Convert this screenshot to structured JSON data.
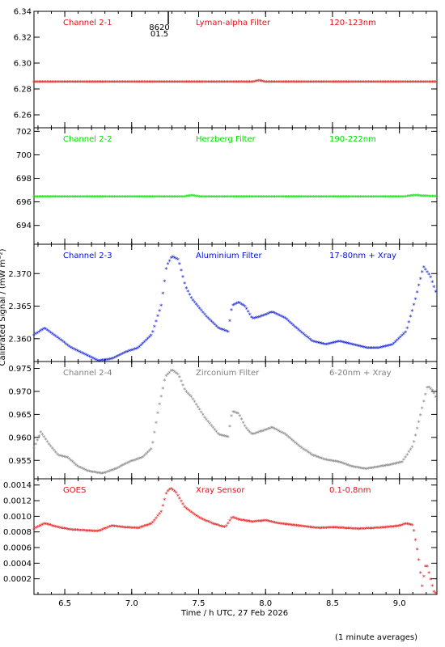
{
  "figure": {
    "xlabel": "Time / h UTC, 27 Feb 2026",
    "ylabel": "Calibrated Signal / (mW m⁻²)",
    "footnote": "(1 minute averages)",
    "annotation": {
      "top": "8620",
      "bottom": "01.5"
    }
  },
  "colors": {
    "red": "#dd1111",
    "green": "#00dd00",
    "blue": "#0011cc",
    "gray": "#808080",
    "axis": "#000000"
  },
  "x_axis": {
    "range": [
      6.27,
      9.28
    ],
    "ticks": [
      "6.5",
      "7.0",
      "7.5",
      "8.0",
      "8.5",
      "9.0"
    ]
  },
  "chart_data": [
    {
      "type": "scatter",
      "labels": [
        "Channel 2-1",
        "Lyman-alpha Filter",
        "120-123nm"
      ],
      "color": "red",
      "ylim": [
        6.25,
        6.34
      ],
      "ytick_labels": [
        "6.26",
        "6.28",
        "6.30",
        "6.32",
        "6.34"
      ],
      "x": [
        6.27,
        7.0,
        7.9,
        7.95,
        8.0,
        9.28
      ],
      "y": [
        6.285,
        6.285,
        6.285,
        6.286,
        6.285,
        6.285
      ]
    },
    {
      "type": "scatter",
      "labels": [
        "Channel 2-2",
        "Herzberg Filter",
        "190-222nm"
      ],
      "color": "green",
      "ylim": [
        692.4,
        702.3
      ],
      "ytick_labels": [
        "694",
        "696",
        "698",
        "700",
        "702"
      ],
      "x": [
        6.27,
        7.4,
        7.45,
        7.5,
        9.05,
        9.1,
        9.28
      ],
      "y": [
        696.4,
        696.4,
        696.5,
        696.4,
        696.4,
        696.5,
        696.4
      ]
    },
    {
      "type": "scatter",
      "labels": [
        "Channel 2-3",
        "Aluminium Filter",
        "17-80nm + Xray"
      ],
      "color": "blue",
      "ylim": [
        2.3565,
        2.3745
      ],
      "ytick_labels": [
        "2.360",
        "2.365",
        "2.370"
      ],
      "x": [
        6.27,
        6.35,
        6.45,
        6.55,
        6.65,
        6.75,
        6.85,
        6.95,
        7.05,
        7.15,
        7.22,
        7.26,
        7.3,
        7.35,
        7.4,
        7.45,
        7.55,
        7.65,
        7.72,
        7.75,
        7.8,
        7.85,
        7.9,
        7.95,
        8.05,
        8.15,
        8.25,
        8.35,
        8.45,
        8.55,
        8.65,
        8.75,
        8.85,
        8.95,
        9.05,
        9.12,
        9.18,
        9.23,
        9.28
      ],
      "y": [
        2.3605,
        2.3615,
        2.36,
        2.3585,
        2.3575,
        2.3565,
        2.3568,
        2.3578,
        2.3585,
        2.3605,
        2.365,
        2.371,
        2.3725,
        2.372,
        2.368,
        2.366,
        2.3635,
        2.3615,
        2.361,
        2.365,
        2.3655,
        2.3648,
        2.363,
        2.3632,
        2.364,
        2.363,
        2.3612,
        2.3595,
        2.359,
        2.3595,
        2.359,
        2.3585,
        2.3585,
        2.359,
        2.361,
        2.366,
        2.371,
        2.3695,
        2.3665
      ]
    },
    {
      "type": "scatter",
      "labels": [
        "Channel 2-4",
        "Zirconium Filter",
        "6-20nm + Xray"
      ],
      "color": "gray",
      "ylim": [
        0.951,
        0.9765
      ],
      "ytick_labels": [
        "0.955",
        "0.960",
        "0.965",
        "0.970",
        "0.975"
      ],
      "x": [
        6.27,
        6.32,
        6.38,
        6.45,
        6.52,
        6.6,
        6.68,
        6.78,
        6.88,
        6.98,
        7.08,
        7.15,
        7.2,
        7.25,
        7.3,
        7.35,
        7.4,
        7.45,
        7.55,
        7.65,
        7.72,
        7.75,
        7.8,
        7.85,
        7.9,
        7.95,
        8.05,
        8.15,
        8.25,
        8.35,
        8.45,
        8.55,
        8.65,
        8.75,
        8.85,
        8.95,
        9.02,
        9.1,
        9.16,
        9.21,
        9.25,
        9.28
      ],
      "y": [
        0.9575,
        0.961,
        0.9585,
        0.956,
        0.9555,
        0.9535,
        0.9525,
        0.952,
        0.953,
        0.9545,
        0.9555,
        0.9575,
        0.966,
        0.973,
        0.9745,
        0.9735,
        0.97,
        0.9685,
        0.964,
        0.9605,
        0.96,
        0.9655,
        0.965,
        0.962,
        0.9605,
        0.961,
        0.962,
        0.9605,
        0.958,
        0.956,
        0.955,
        0.9545,
        0.9535,
        0.953,
        0.9535,
        0.954,
        0.9545,
        0.958,
        0.965,
        0.971,
        0.97,
        0.968
      ]
    },
    {
      "type": "scatter",
      "labels": [
        "GOES",
        "Xray Sensor",
        "0.1-0.8nm"
      ],
      "color": "red",
      "ylim": [
        0.0,
        0.00148
      ],
      "ytick_labels": [
        "0.0002",
        "0.0004",
        "0.0006",
        "0.0008",
        "0.0010",
        "0.0012",
        "0.0014"
      ],
      "x": [
        6.27,
        6.35,
        6.45,
        6.55,
        6.65,
        6.75,
        6.85,
        6.95,
        7.05,
        7.15,
        7.22,
        7.26,
        7.29,
        7.33,
        7.4,
        7.5,
        7.6,
        7.7,
        7.75,
        7.8,
        7.9,
        8.0,
        8.1,
        8.2,
        8.3,
        8.4,
        8.5,
        8.6,
        8.7,
        8.8,
        8.9,
        9.0,
        9.05,
        9.1,
        9.14,
        9.17,
        9.2,
        9.23,
        9.26,
        9.28
      ],
      "y": [
        0.00083,
        0.0009,
        0.00085,
        0.00082,
        0.00081,
        0.0008,
        0.00087,
        0.00085,
        0.00084,
        0.0009,
        0.00105,
        0.0013,
        0.00135,
        0.0013,
        0.0011,
        0.00098,
        0.0009,
        0.00085,
        0.00098,
        0.00095,
        0.00092,
        0.00094,
        0.0009,
        0.00088,
        0.00086,
        0.00084,
        0.00085,
        0.00084,
        0.00083,
        0.00084,
        0.00085,
        0.00087,
        0.0009,
        0.00088,
        0.0005,
        0.0001,
        0.0004,
        0.0002,
        1e-05,
        1e-05
      ]
    }
  ]
}
